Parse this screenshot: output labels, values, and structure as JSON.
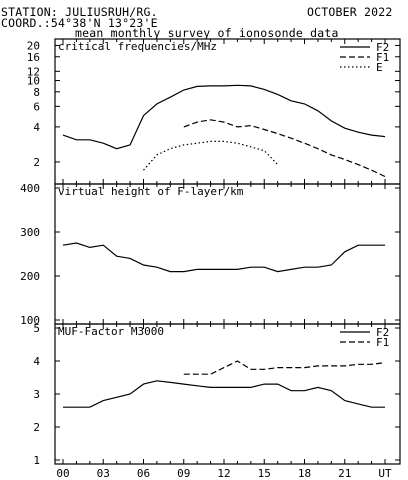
{
  "header": {
    "station": "STATION: JULIUSRUH/RG.",
    "coord": "COORD.:54°38'N 13°23'E",
    "date": "OCTOBER 2022",
    "subtitle": "mean monthly survey of ionosonde data"
  },
  "chart_data": [
    {
      "type": "line",
      "title": "critical frequencies/MHz",
      "x_ticks": [
        "00",
        "03",
        "06",
        "09",
        "12",
        "15",
        "18",
        "21",
        "UT"
      ],
      "x_range": [
        0,
        24
      ],
      "y_scale": "log",
      "y_ticks": [
        2,
        4,
        6,
        8,
        10,
        12,
        16,
        20
      ],
      "ylim": [
        1.4,
        21
      ],
      "legend_position": "top-right",
      "series": [
        {
          "name": "F2",
          "style": "solid",
          "x": [
            0,
            1,
            2,
            3,
            4,
            5,
            6,
            7,
            8,
            9,
            10,
            11,
            12,
            13,
            14,
            15,
            16,
            17,
            18,
            19,
            20,
            21,
            22,
            23,
            24
          ],
          "y": [
            3.4,
            3.1,
            3.1,
            2.9,
            2.6,
            2.8,
            5.0,
            6.3,
            7.2,
            8.3,
            8.9,
            9.0,
            9.0,
            9.1,
            9.0,
            8.4,
            7.6,
            6.7,
            6.3,
            5.5,
            4.5,
            3.9,
            3.6,
            3.4,
            3.3
          ]
        },
        {
          "name": "F1",
          "style": "dashed",
          "x": [
            9,
            10,
            11,
            12,
            13,
            14,
            15,
            16,
            17,
            18,
            19,
            20,
            21,
            22,
            23,
            24
          ],
          "y": [
            4.0,
            4.4,
            4.6,
            4.4,
            4.0,
            4.1,
            3.8,
            3.5,
            3.2,
            2.9,
            2.6,
            2.3,
            2.1,
            1.9,
            1.7,
            1.5
          ]
        },
        {
          "name": "E",
          "style": "dotted",
          "x": [
            6,
            7,
            8,
            9,
            10,
            11,
            12,
            13,
            14,
            15,
            16
          ],
          "y": [
            1.7,
            2.3,
            2.6,
            2.8,
            2.9,
            3.0,
            3.0,
            2.9,
            2.7,
            2.5,
            1.9
          ]
        }
      ]
    },
    {
      "type": "line",
      "title": "virtual height of F-layer/km",
      "x_ticks": [
        "00",
        "03",
        "06",
        "09",
        "12",
        "15",
        "18",
        "21",
        "UT"
      ],
      "x_range": [
        0,
        24
      ],
      "y_ticks": [
        100,
        200,
        300,
        400
      ],
      "ylim": [
        100,
        400
      ],
      "series": [
        {
          "name": "",
          "style": "solid",
          "x": [
            0,
            1,
            2,
            3,
            4,
            5,
            6,
            7,
            8,
            9,
            10,
            11,
            12,
            13,
            14,
            15,
            16,
            17,
            18,
            19,
            20,
            21,
            22,
            23,
            24
          ],
          "y": [
            270,
            275,
            265,
            270,
            245,
            240,
            225,
            220,
            210,
            210,
            215,
            215,
            215,
            215,
            220,
            220,
            210,
            215,
            220,
            220,
            225,
            255,
            270,
            270,
            270
          ]
        }
      ]
    },
    {
      "type": "line",
      "title": "MUF-Factor M3000",
      "x_ticks": [
        "00",
        "03",
        "06",
        "09",
        "12",
        "15",
        "18",
        "21",
        "UT"
      ],
      "x_range": [
        0,
        24
      ],
      "y_ticks": [
        1,
        2,
        3,
        4,
        5
      ],
      "ylim": [
        1,
        5
      ],
      "legend_position": "top-right",
      "series": [
        {
          "name": "F2",
          "style": "solid",
          "x": [
            0,
            1,
            2,
            3,
            4,
            5,
            6,
            7,
            8,
            9,
            10,
            11,
            12,
            13,
            14,
            15,
            16,
            17,
            18,
            19,
            20,
            21,
            22,
            23,
            24
          ],
          "y": [
            2.6,
            2.6,
            2.6,
            2.8,
            2.9,
            3.0,
            3.3,
            3.4,
            3.35,
            3.3,
            3.25,
            3.2,
            3.2,
            3.2,
            3.2,
            3.3,
            3.3,
            3.1,
            3.1,
            3.2,
            3.1,
            2.8,
            2.7,
            2.6,
            2.6
          ]
        },
        {
          "name": "F1",
          "style": "dashed",
          "x": [
            9,
            10,
            11,
            12,
            12.5,
            13,
            14,
            15,
            16,
            17,
            18,
            19,
            20,
            21,
            22,
            23,
            24
          ],
          "y": [
            3.6,
            3.6,
            3.6,
            3.8,
            3.9,
            4.0,
            3.75,
            3.75,
            3.8,
            3.8,
            3.8,
            3.85,
            3.85,
            3.85,
            3.9,
            3.9,
            3.95
          ]
        }
      ]
    }
  ]
}
